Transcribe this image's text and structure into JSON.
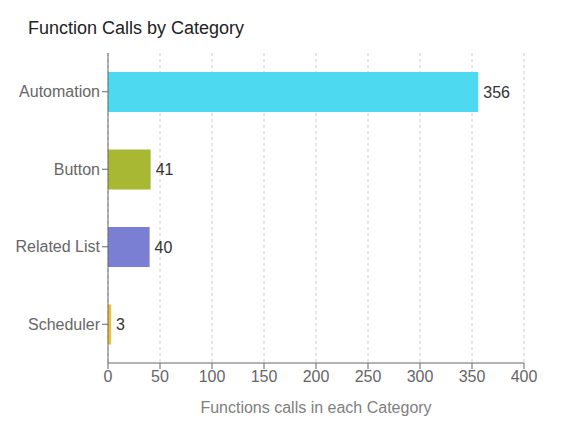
{
  "chart_data": {
    "type": "bar",
    "orientation": "horizontal",
    "title": "Function Calls by Category",
    "categories": [
      "Scheduler",
      "Related List",
      "Button",
      "Automation"
    ],
    "values": [
      3,
      40,
      41,
      356
    ],
    "colors": [
      "#F0C030",
      "#7B7FD4",
      "#A8B832",
      "#4DD9F0"
    ],
    "xlabel": "Functions calls in each Category",
    "xlim": [
      0,
      400
    ],
    "xticks": [
      0,
      50,
      100,
      150,
      200,
      250,
      300,
      350,
      400
    ],
    "grid": true,
    "data_labels": true
  }
}
